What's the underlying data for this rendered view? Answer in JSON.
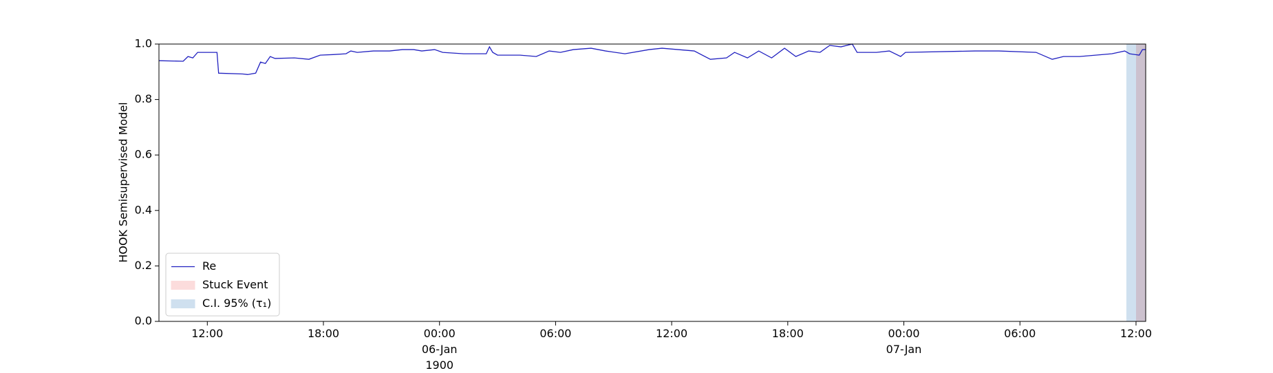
{
  "chart_data": {
    "type": "line",
    "ylabel": "HOOK Semisupervised Model",
    "xlim": [
      "1900-01-05T09:30",
      "1900-01-07T12:30"
    ],
    "xticks": [
      {
        "value": "1900-01-05T12:00",
        "label": "12:00"
      },
      {
        "value": "1900-01-05T18:00",
        "label": "18:00"
      },
      {
        "value": "1900-01-06T00:00",
        "label": "00:00\n06-Jan\n1900"
      },
      {
        "value": "1900-01-06T06:00",
        "label": "06:00"
      },
      {
        "value": "1900-01-06T12:00",
        "label": "12:00"
      },
      {
        "value": "1900-01-06T18:00",
        "label": "18:00"
      },
      {
        "value": "1900-01-07T00:00",
        "label": "00:00\n07-Jan"
      },
      {
        "value": "1900-01-07T06:00",
        "label": "06:00"
      },
      {
        "value": "1900-01-07T12:00",
        "label": "12:00"
      }
    ],
    "ylim": [
      0,
      1
    ],
    "yticks": [
      {
        "value": 0,
        "label": "0.0"
      },
      0.2,
      0.4,
      0.6,
      0.8,
      {
        "value": 1,
        "label": "1.0"
      }
    ],
    "legend": "lower left",
    "series": [
      {
        "name": "Re",
        "color": "#2020c0",
        "x": [
          "1900-01-05T09:30",
          "1900-01-05T10:45",
          "1900-01-05T11:00",
          "1900-01-05T11:15",
          "1900-01-05T11:30",
          "1900-01-05T12:30",
          "1900-01-05T12:35",
          "1900-01-05T13:50",
          "1900-01-05T14:05",
          "1900-01-05T14:30",
          "1900-01-05T14:45",
          "1900-01-05T15:00",
          "1900-01-05T15:15",
          "1900-01-05T15:30",
          "1900-01-05T16:30",
          "1900-01-05T17:15",
          "1900-01-05T17:50",
          "1900-01-05T18:30",
          "1900-01-05T19:10",
          "1900-01-05T19:25",
          "1900-01-05T19:45",
          "1900-01-05T20:35",
          "1900-01-05T21:25",
          "1900-01-05T22:05",
          "1900-01-05T22:40",
          "1900-01-05T23:05",
          "1900-01-05T23:45",
          "1900-01-06T00:10",
          "1900-01-06T01:15",
          "1900-01-06T02:25",
          "1900-01-06T02:35",
          "1900-01-06T02:45",
          "1900-01-06T03:00",
          "1900-01-06T04:10",
          "1900-01-06T05:00",
          "1900-01-06T05:40",
          "1900-01-06T06:15",
          "1900-01-06T06:55",
          "1900-01-06T07:50",
          "1900-01-06T08:35",
          "1900-01-06T09:35",
          "1900-01-06T10:50",
          "1900-01-06T11:30",
          "1900-01-06T12:20",
          "1900-01-06T13:10",
          "1900-01-06T14:00",
          "1900-01-06T14:50",
          "1900-01-06T15:15",
          "1900-01-06T15:55",
          "1900-01-06T16:30",
          "1900-01-06T17:10",
          "1900-01-06T17:50",
          "1900-01-06T18:25",
          "1900-01-06T19:05",
          "1900-01-06T19:40",
          "1900-01-06T20:10",
          "1900-01-06T20:45",
          "1900-01-06T21:20",
          "1900-01-06T21:35",
          "1900-01-06T22:35",
          "1900-01-06T23:15",
          "1900-01-06T23:50",
          "1900-01-07T00:05",
          "1900-01-07T03:40",
          "1900-01-07T04:55",
          "1900-01-07T06:50",
          "1900-01-07T07:40",
          "1900-01-07T08:15",
          "1900-01-07T09:05",
          "1900-01-07T09:55",
          "1900-01-07T10:45",
          "1900-01-07T11:25",
          "1900-01-07T11:40",
          "1900-01-07T12:10",
          "1900-01-07T12:20",
          "1900-01-07T12:30"
        ],
        "values": [
          0.94,
          0.938,
          0.955,
          0.95,
          0.97,
          0.97,
          0.895,
          0.892,
          0.89,
          0.895,
          0.935,
          0.93,
          0.955,
          0.948,
          0.95,
          0.945,
          0.96,
          0.962,
          0.965,
          0.975,
          0.97,
          0.975,
          0.975,
          0.98,
          0.98,
          0.975,
          0.98,
          0.97,
          0.965,
          0.965,
          0.99,
          0.97,
          0.96,
          0.96,
          0.955,
          0.975,
          0.97,
          0.98,
          0.985,
          0.975,
          0.965,
          0.98,
          0.985,
          0.98,
          0.975,
          0.945,
          0.95,
          0.97,
          0.95,
          0.975,
          0.95,
          0.985,
          0.955,
          0.975,
          0.97,
          0.995,
          0.99,
          1.0,
          0.97,
          0.97,
          0.975,
          0.955,
          0.97,
          0.975,
          0.975,
          0.97,
          0.945,
          0.955,
          0.955,
          0.96,
          0.965,
          0.975,
          0.965,
          0.96,
          0.98,
          0.98
        ]
      }
    ],
    "spans": [
      {
        "name": "Stuck Event",
        "color": "#fcdcdc",
        "start": "1900-01-07T12:00",
        "end": "1900-01-07T12:30"
      },
      {
        "name": "C.I. 95% (τ₁)",
        "color": "#cfe0ef",
        "start": "1900-01-07T11:30",
        "end": "1900-01-07T12:30"
      }
    ]
  }
}
